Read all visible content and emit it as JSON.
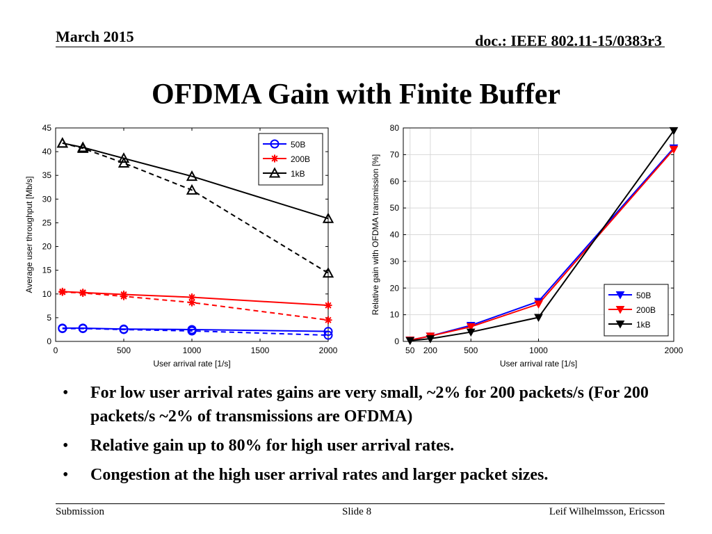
{
  "header": {
    "date": "March 2015",
    "doc": "doc.: IEEE 802.11-15/0383r3"
  },
  "slide_title": "OFDMA Gain with Finite Buffer",
  "bullets": [
    "For low user arrival rates gains are very small, ~2% for 200 packets/s (For 200 packets/s  ~2% of transmissions are OFDMA)",
    "Relative gain up to 80% for high user arrival rates.",
    "Congestion at the high user arrival rates and larger packet sizes."
  ],
  "footer": {
    "left": "Submission",
    "center": "Slide 8",
    "right": "Leif Wilhelmsson, Ericsson"
  },
  "chart_data": [
    {
      "type": "line",
      "xlabel": "User arrival rate [1/s]",
      "ylabel": "Average user throughput [Mb/s]",
      "xlim": [
        0,
        2000
      ],
      "ylim": [
        0,
        45
      ],
      "xticks": [
        0,
        500,
        1000,
        1500,
        2000
      ],
      "yticks": [
        0,
        5,
        10,
        15,
        20,
        25,
        30,
        35,
        40,
        45
      ],
      "grid": false,
      "legend_position": "top-right",
      "legend": [
        {
          "name": "50B",
          "color": "#0000ff",
          "marker": "circle"
        },
        {
          "name": "200B",
          "color": "#ff0000",
          "marker": "star"
        },
        {
          "name": "1kB",
          "color": "#000000",
          "marker": "triangle-up"
        }
      ],
      "x": [
        50,
        200,
        500,
        1000,
        2000
      ],
      "series": [
        {
          "legend_index": 0,
          "color": "#0000ff",
          "marker": "circle",
          "dash": "solid",
          "values": [
            2.8,
            2.8,
            2.6,
            2.5,
            2.1
          ]
        },
        {
          "legend_index": 0,
          "color": "#0000ff",
          "marker": "circle",
          "dash": "dashed",
          "values": [
            2.7,
            2.7,
            2.5,
            2.2,
            1.3
          ]
        },
        {
          "legend_index": 1,
          "color": "#ff0000",
          "marker": "star",
          "dash": "solid",
          "values": [
            10.5,
            10.3,
            9.9,
            9.3,
            7.6
          ]
        },
        {
          "legend_index": 1,
          "color": "#ff0000",
          "marker": "star",
          "dash": "dashed",
          "values": [
            10.4,
            10.2,
            9.5,
            8.2,
            4.5
          ]
        },
        {
          "legend_index": 2,
          "color": "#000000",
          "marker": "triangle-up",
          "dash": "solid",
          "values": [
            41.8,
            40.9,
            38.6,
            34.8,
            25.9
          ]
        },
        {
          "legend_index": 2,
          "color": "#000000",
          "marker": "triangle-up",
          "dash": "dashed",
          "values": [
            41.8,
            40.7,
            37.6,
            31.9,
            14.4
          ]
        }
      ]
    },
    {
      "type": "line",
      "xlabel": "User arrival rate [1/s]",
      "ylabel": "Relative gain with OFDMA transmission [%]",
      "xlim": [
        0,
        2000
      ],
      "ylim": [
        0,
        80
      ],
      "xticks": [
        50,
        200,
        500,
        1000,
        2000
      ],
      "yticks": [
        0,
        10,
        20,
        30,
        40,
        50,
        60,
        70,
        80
      ],
      "grid": true,
      "legend_position": "bottom-right",
      "legend": [
        {
          "name": "50B",
          "color": "#0000ff",
          "marker": "triangle-down"
        },
        {
          "name": "200B",
          "color": "#ff0000",
          "marker": "triangle-down"
        },
        {
          "name": "1kB",
          "color": "#000000",
          "marker": "triangle-down"
        }
      ],
      "x": [
        50,
        200,
        500,
        1000,
        2000
      ],
      "series": [
        {
          "legend_index": 0,
          "color": "#0000ff",
          "marker": "triangle-down",
          "dash": "solid",
          "values": [
            0.5,
            2,
            6,
            15,
            72.5
          ]
        },
        {
          "legend_index": 1,
          "color": "#ff0000",
          "marker": "triangle-down",
          "dash": "solid",
          "values": [
            0.5,
            2,
            5.5,
            14,
            72
          ]
        },
        {
          "legend_index": 2,
          "color": "#000000",
          "marker": "triangle-down",
          "dash": "solid",
          "values": [
            0.3,
            1,
            3.5,
            9,
            79
          ]
        }
      ]
    }
  ]
}
